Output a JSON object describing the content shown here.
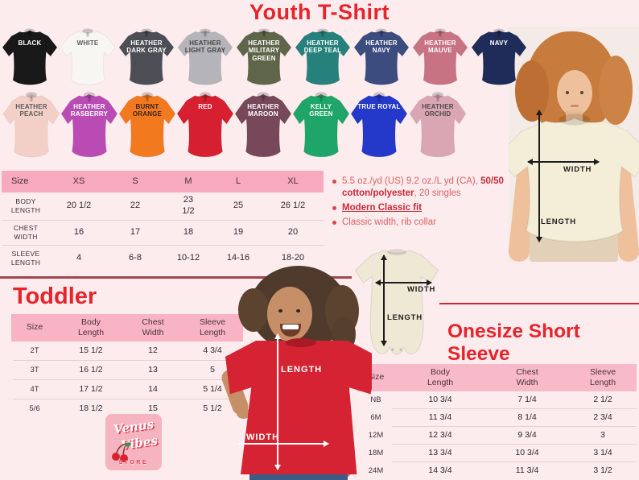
{
  "page": {
    "title": "Youth T-Shirt",
    "background": "#fcecee",
    "accent_red": "#e7242b",
    "header_pink": "#f7a9bd"
  },
  "shirt_rows": [
    {
      "shirts": [
        {
          "label": "BLACK",
          "color": "#181818",
          "text_color": "#ffffff"
        },
        {
          "label": "WHITE",
          "color": "#f7f6f3",
          "text_color": "#5a5a5a"
        },
        {
          "label": "HEATHER\nDARK GRAY",
          "color": "#4d4d55",
          "text_color": "#ffffff"
        },
        {
          "label": "HEATHER\nLIGHT GRAY",
          "color": "#b5b4b9",
          "text_color": "#454545"
        },
        {
          "label": "HEATHER\nMILITARY\nGREEN",
          "color": "#5f6549",
          "text_color": "#ffffff"
        },
        {
          "label": "HEATHER\nDEEP TEAL",
          "color": "#26807b",
          "text_color": "#ffffff"
        },
        {
          "label": "HEATHER\nNAVY",
          "color": "#3c4c7e",
          "text_color": "#ffffff"
        },
        {
          "label": "HEATHER\nMAUVE",
          "color": "#c87383",
          "text_color": "#ffffff"
        },
        {
          "label": "NAVY",
          "color": "#1f2b59",
          "text_color": "#ffffff"
        }
      ]
    },
    {
      "shirts": [
        {
          "label": "HEATHER\nPEACH",
          "color": "#f3d0c7",
          "text_color": "#5a5a5a"
        },
        {
          "label": "HEATHER\nRASBERRY",
          "color": "#ba4bb4",
          "text_color": "#ffffff"
        },
        {
          "label": "BURNT\nORANGE",
          "color": "#f3791f",
          "text_color": "#33261a"
        },
        {
          "label": "RED",
          "color": "#d6202f",
          "text_color": "#ffffff"
        },
        {
          "label": "HEATHER\nMAROON",
          "color": "#77485a",
          "text_color": "#ffffff"
        },
        {
          "label": "KELLY\nGREEN",
          "color": "#1fa567",
          "text_color": "#ffffff"
        },
        {
          "label": "TRUE ROYAL",
          "color": "#2438c9",
          "text_color": "#ffffff"
        },
        {
          "label": "HEATHER\nORCHID",
          "color": "#daa6b4",
          "text_color": "#4a4a4a"
        }
      ]
    }
  ],
  "youth_table": {
    "columns": [
      "Size",
      "XS",
      "S",
      "M",
      "L",
      "XL"
    ],
    "rows": [
      {
        "label": "BODY\nLENGTH",
        "values": [
          "20 1/2",
          "22",
          "23\n1/2",
          "25",
          "26 1/2"
        ]
      },
      {
        "label": "CHEST\nWIDTH",
        "values": [
          "16",
          "17",
          "18",
          "19",
          "20"
        ]
      },
      {
        "label": "SLEEVE\nLENGTH",
        "values": [
          "4",
          "6-8",
          "10-12",
          "14-16",
          "18-20"
        ]
      }
    ]
  },
  "features": [
    {
      "parts": [
        {
          "text": "5.5 oz./yd (US) 9.2 oz./L yd (CA), ",
          "style": "normal"
        },
        {
          "text": "50/50 cotton/polyester",
          "style": "bold"
        },
        {
          "text": ", 20 singles",
          "style": "normal"
        }
      ]
    },
    {
      "parts": [
        {
          "text": "Modern Classic fit",
          "style": "bold-underline"
        }
      ]
    },
    {
      "parts": [
        {
          "text": "Classic width, rib collar",
          "style": "normal"
        }
      ]
    }
  ],
  "youth_model": {
    "width": "WIDTH",
    "length": "LENGTH"
  },
  "toddler_model": {
    "width": "WIDTH",
    "length": "LENGTH"
  },
  "onesie_diagram": {
    "width": "WIDTH",
    "length": "LENGTH"
  },
  "toddler": {
    "title": "Toddler",
    "table": {
      "columns": [
        "Size",
        "Body\nLength",
        "Chest\nWidth",
        "Sleeve\nLength"
      ],
      "rows": [
        {
          "label": "2T",
          "values": [
            "15 1/2",
            "12",
            "4 3/4"
          ]
        },
        {
          "label": "3T",
          "values": [
            "16 1/2",
            "13",
            "5"
          ]
        },
        {
          "label": "4T",
          "values": [
            "17 1/2",
            "14",
            "5 1/4"
          ]
        },
        {
          "label": "5/6",
          "values": [
            "18 1/2",
            "15",
            "5 1/2"
          ]
        }
      ]
    }
  },
  "onesize": {
    "title": "Onesize Short Sleeve",
    "table": {
      "columns": [
        "Size",
        "Body\nLength",
        "Chest\nWidth",
        "Sleeve\nLength"
      ],
      "rows": [
        {
          "label": "NB",
          "values": [
            "10 3/4",
            "7 1/4",
            "2 1/2"
          ]
        },
        {
          "label": "6M",
          "values": [
            "11 3/4",
            "8 1/4",
            "2 3/4"
          ]
        },
        {
          "label": "12M",
          "values": [
            "12 3/4",
            "9 3/4",
            "3"
          ]
        },
        {
          "label": "18M",
          "values": [
            "13 3/4",
            "10 3/4",
            "3 1/4"
          ]
        },
        {
          "label": "24M",
          "values": [
            "14 3/4",
            "11 3/4",
            "3 1/2"
          ]
        }
      ]
    }
  },
  "logo": {
    "word1": "Venus",
    "word2": "Vibes",
    "store": "STORE"
  }
}
